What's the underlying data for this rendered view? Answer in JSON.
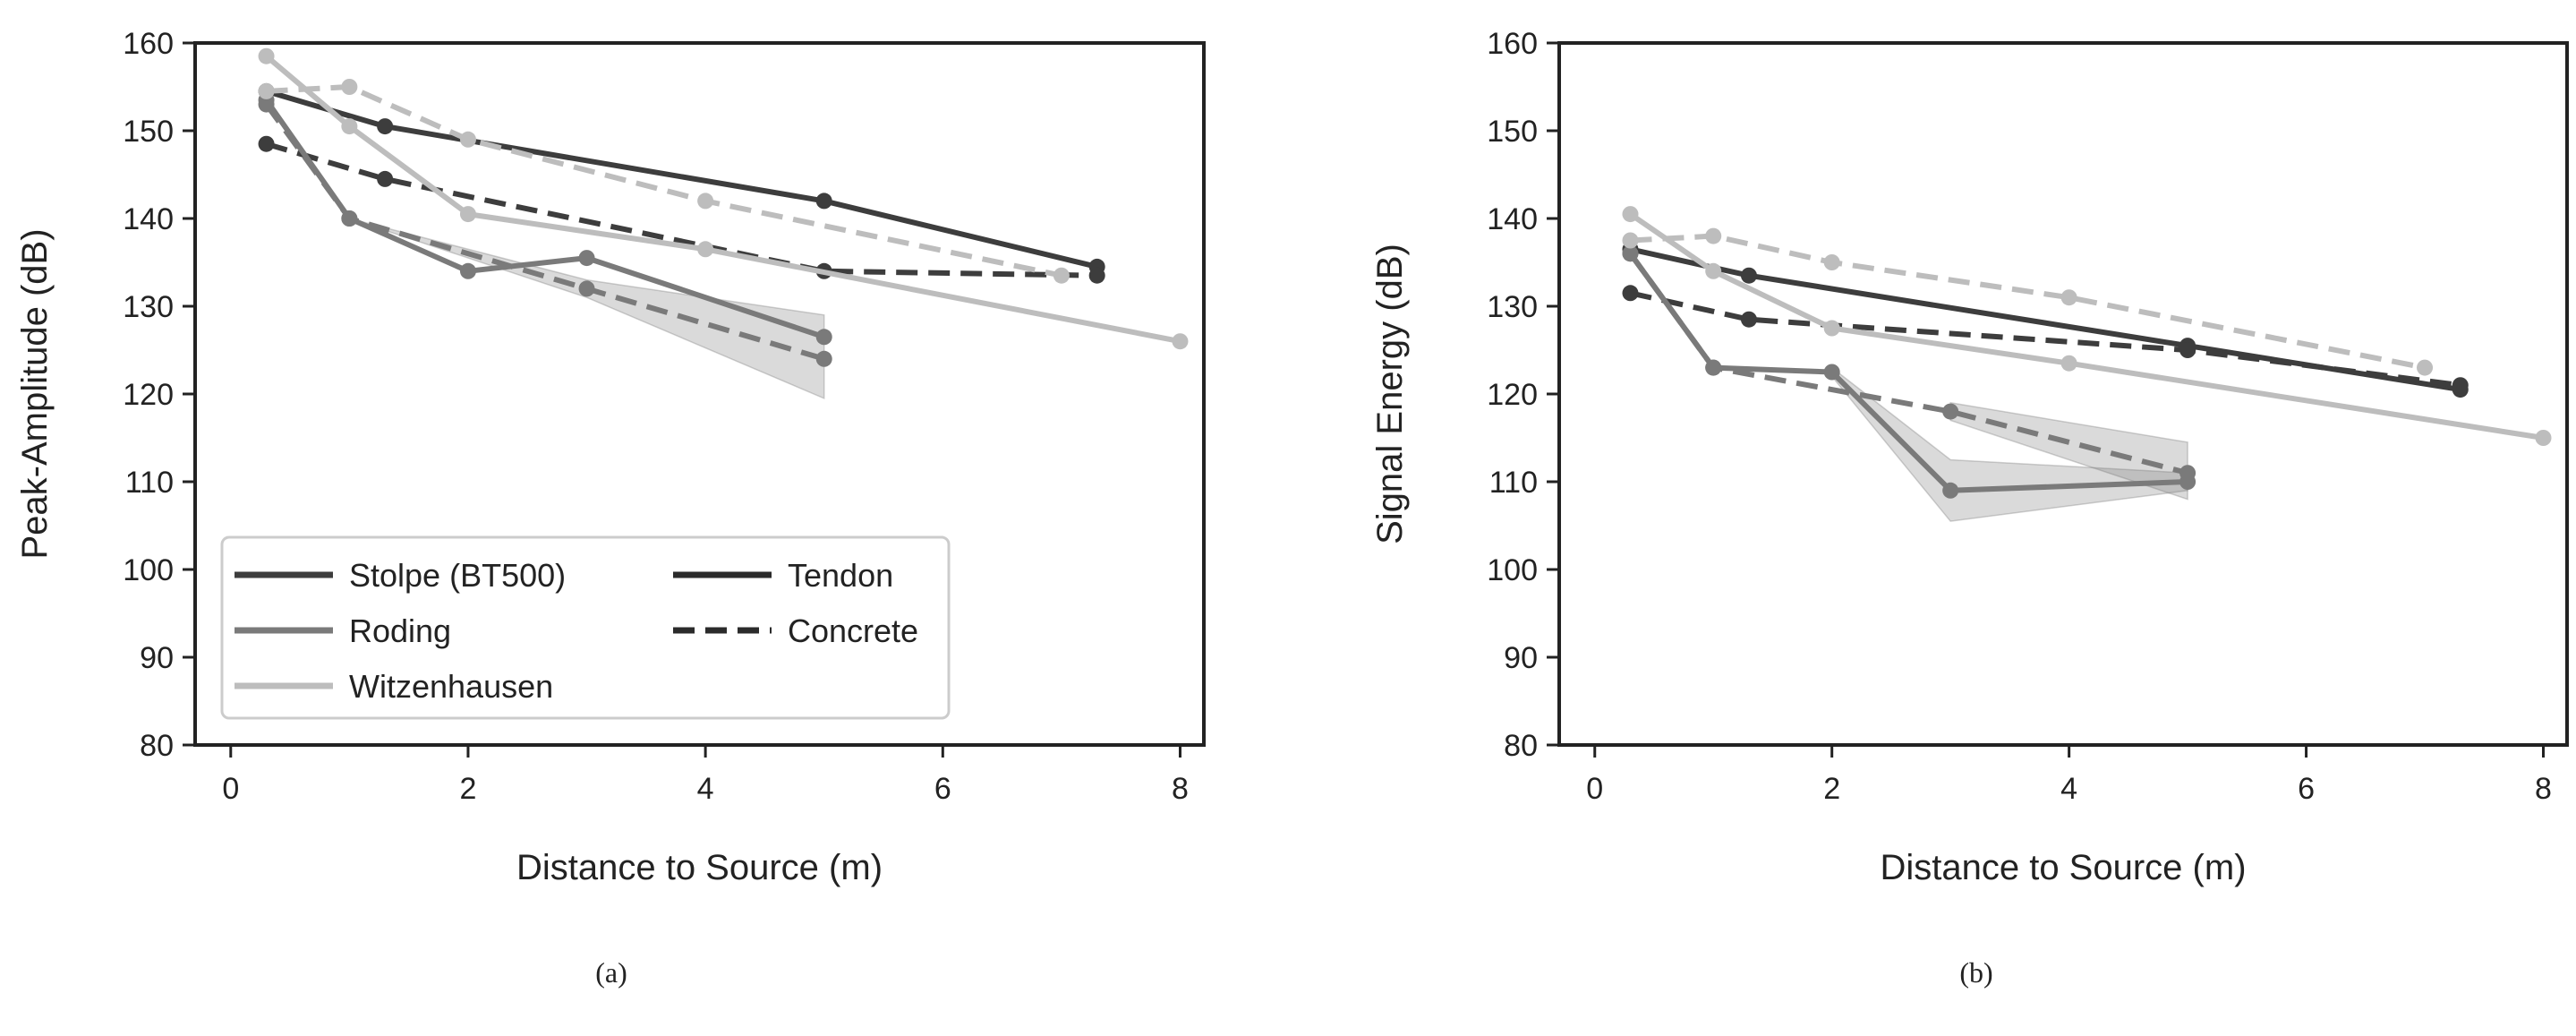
{
  "figure": {
    "captions": [
      "(a)",
      "(b)"
    ]
  },
  "legend": {
    "entries": [
      {
        "label_main": "Stolpe",
        "label_paren": "(BT500)",
        "color": "#3d3d3d",
        "dash": "solid"
      },
      {
        "label_main": "Roding",
        "label_paren": "",
        "color": "#7a7a7a",
        "dash": "solid"
      },
      {
        "label_main": "Witzenhausen",
        "label_paren": "",
        "color": "#bdbdbd",
        "dash": "solid"
      },
      {
        "label_main": "Tendon",
        "label_paren": "",
        "color": "#2b2b2b",
        "dash": "solid"
      },
      {
        "label_main": "Concrete",
        "label_paren": "",
        "color": "#2b2b2b",
        "dash": "dashed"
      }
    ]
  },
  "colors": {
    "Stolpe": "#3d3d3d",
    "Roding": "#7a7a7a",
    "Witzenhausen": "#bdbdbd",
    "band": "#d9d9d9",
    "frame": "#222222"
  },
  "chart_data": [
    {
      "type": "line",
      "caption": "(a)",
      "xlabel_main": "Distance to Source",
      "xlabel_unit": "(m)",
      "ylabel_main": "Peak-Amplitude",
      "ylabel_unit": "(dB)",
      "xlim": [
        -0.3,
        8.2
      ],
      "ylim": [
        80,
        160
      ],
      "xticks": [
        0,
        2,
        4,
        6,
        8
      ],
      "yticks": [
        80,
        90,
        100,
        110,
        120,
        130,
        140,
        150,
        160
      ],
      "grid": false,
      "legend_position": "bottom-left",
      "series": [
        {
          "site": "Stolpe",
          "medium": "Tendon",
          "x": [
            0.3,
            1.3,
            5,
            7.3
          ],
          "y": [
            154.5,
            150.5,
            142,
            134.5
          ]
        },
        {
          "site": "Stolpe",
          "medium": "Concrete",
          "x": [
            0.3,
            1.3,
            5,
            7.3
          ],
          "y": [
            148.5,
            144.5,
            134,
            133.5
          ]
        },
        {
          "site": "Roding",
          "medium": "Tendon",
          "x": [
            0.3,
            1,
            2,
            3,
            5
          ],
          "y": [
            153.5,
            140,
            134,
            135.5,
            126.5
          ]
        },
        {
          "site": "Roding",
          "medium": "Concrete",
          "x": [
            0.3,
            1,
            3,
            5
          ],
          "y": [
            153,
            140,
            132,
            124
          ],
          "band_x": [
            1,
            3,
            5
          ],
          "band_low": [
            140,
            131,
            119.5
          ],
          "band_high": [
            140,
            133,
            129
          ]
        },
        {
          "site": "Witzenhausen",
          "medium": "Tendon",
          "x": [
            0.3,
            1,
            2,
            4,
            8
          ],
          "y": [
            158.5,
            150.5,
            140.5,
            136.5,
            126
          ]
        },
        {
          "site": "Witzenhausen",
          "medium": "Concrete",
          "x": [
            0.3,
            1,
            2,
            4,
            7
          ],
          "y": [
            154.5,
            155,
            149,
            142,
            133.5
          ]
        }
      ]
    },
    {
      "type": "line",
      "caption": "(b)",
      "xlabel_main": "Distance to Source",
      "xlabel_unit": "(m)",
      "ylabel_main": "Signal Energy",
      "ylabel_unit": "(dB)",
      "xlim": [
        -0.3,
        8.2
      ],
      "ylim": [
        80,
        160
      ],
      "xticks": [
        0,
        2,
        4,
        6,
        8
      ],
      "yticks": [
        80,
        90,
        100,
        110,
        120,
        130,
        140,
        150,
        160
      ],
      "grid": false,
      "legend_position": "none",
      "series": [
        {
          "site": "Stolpe",
          "medium": "Tendon",
          "x": [
            0.3,
            1.3,
            5,
            7.3
          ],
          "y": [
            136.5,
            133.5,
            125.5,
            120.5
          ]
        },
        {
          "site": "Stolpe",
          "medium": "Concrete",
          "x": [
            0.3,
            1.3,
            5,
            7.3
          ],
          "y": [
            131.5,
            128.5,
            125,
            121
          ]
        },
        {
          "site": "Roding",
          "medium": "Tendon",
          "x": [
            0.3,
            1,
            2,
            3,
            5
          ],
          "y": [
            136,
            123,
            122.5,
            109,
            110
          ],
          "band_x": [
            2,
            3,
            5
          ],
          "band_low": [
            122,
            105.5,
            109
          ],
          "band_high": [
            123,
            112.5,
            111
          ]
        },
        {
          "site": "Roding",
          "medium": "Concrete",
          "x": [
            0.3,
            1,
            3,
            5
          ],
          "y": [
            136,
            123,
            118,
            111
          ],
          "band_x": [
            3,
            5
          ],
          "band_low": [
            117,
            108
          ],
          "band_high": [
            119,
            114.5
          ]
        },
        {
          "site": "Witzenhausen",
          "medium": "Tendon",
          "x": [
            0.3,
            1,
            2,
            4,
            8
          ],
          "y": [
            140.5,
            134,
            127.5,
            123.5,
            115
          ]
        },
        {
          "site": "Witzenhausen",
          "medium": "Concrete",
          "x": [
            0.3,
            1,
            2,
            4,
            7
          ],
          "y": [
            137.5,
            138,
            135,
            131,
            123
          ]
        }
      ]
    }
  ]
}
